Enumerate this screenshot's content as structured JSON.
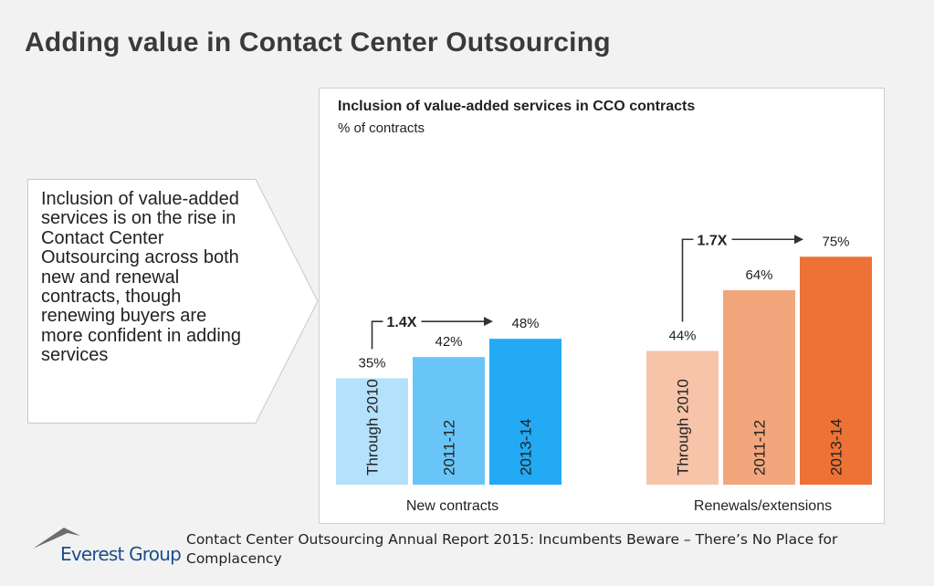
{
  "slide": {
    "title": "Adding value in Contact Center Outsourcing",
    "callout_text": "Inclusion of value-added services is on the rise in Contact Center Outsourcing across both new and renewal contracts, though renewing buyers are more confident in adding services"
  },
  "footer": {
    "logo_text": "Everest Group",
    "source_text": "Contact Center Outsourcing Annual Report 2015: Incumbents Beware – There’s No Place for Complacency"
  },
  "chart_data": {
    "type": "bar",
    "title": "Inclusion of value-added services in CCO contracts",
    "subtitle": "% of contracts",
    "ylim": [
      0,
      80
    ],
    "groups": [
      {
        "name": "New contracts",
        "growth_label": "1.4X",
        "categories": [
          "Through 2010",
          "2011-12",
          "2013-14"
        ],
        "values": [
          35,
          42,
          48
        ],
        "value_labels": [
          "35%",
          "42%",
          "48%"
        ],
        "colors": [
          "#b4e1fb",
          "#69c5f8",
          "#22aaf4"
        ]
      },
      {
        "name": "Renewals/extensions",
        "growth_label": "1.7X",
        "categories": [
          "Through 2010",
          "2011-12",
          "2013-14"
        ],
        "values": [
          44,
          64,
          75
        ],
        "value_labels": [
          "44%",
          "64%",
          "75%"
        ],
        "colors": [
          "#f7c4a9",
          "#f3a57c",
          "#ed7235"
        ]
      }
    ]
  }
}
